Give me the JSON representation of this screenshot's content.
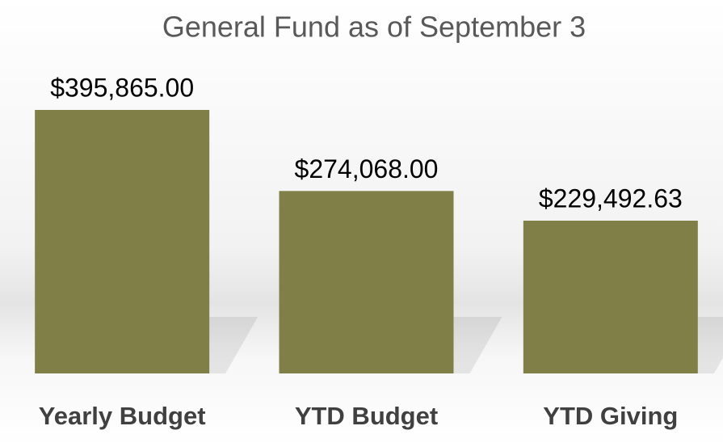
{
  "chart_data": {
    "type": "bar",
    "title": "General Fund as of September 3",
    "categories": [
      "Yearly Budget",
      "YTD Budget",
      "YTD Giving"
    ],
    "values": [
      395865.0,
      274068.0,
      229492.63
    ],
    "value_labels": [
      "$395,865.00",
      "$274,068.00",
      "$229,492.63"
    ],
    "color": "#7f7f47"
  }
}
